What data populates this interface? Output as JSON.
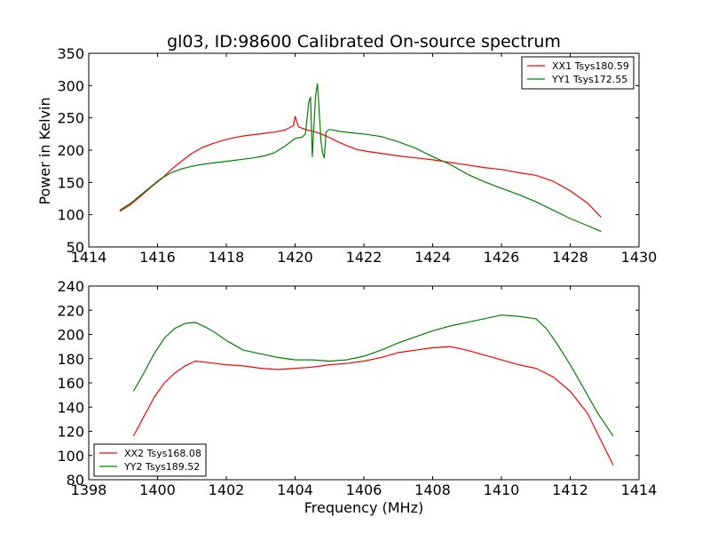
{
  "chart_data": [
    {
      "type": "line",
      "title": "gl03, ID:98600 Calibrated On-source spectrum",
      "xlabel": "",
      "ylabel": "Power in Kelvin",
      "xlim": [
        1414,
        1430
      ],
      "ylim": [
        50,
        350
      ],
      "xticks": [
        "1414",
        "1416",
        "1418",
        "1420",
        "1422",
        "1424",
        "1426",
        "1428",
        "1430"
      ],
      "yticks": [
        "50",
        "100",
        "150",
        "200",
        "250",
        "300",
        "350"
      ],
      "legend_position": "top-right",
      "series": [
        {
          "name": "XX1 Tsys180.59",
          "color": "#ff0000",
          "points": [
            [
              1414.9,
              105
            ],
            [
              1415.2,
              115
            ],
            [
              1415.5,
              128
            ],
            [
              1415.8,
              142
            ],
            [
              1416.1,
              155
            ],
            [
              1416.4,
              170
            ],
            [
              1416.7,
              183
            ],
            [
              1417.0,
              195
            ],
            [
              1417.3,
              204
            ],
            [
              1417.6,
              210
            ],
            [
              1417.9,
              215
            ],
            [
              1418.2,
              219
            ],
            [
              1418.5,
              222
            ],
            [
              1418.8,
              224
            ],
            [
              1419.1,
              226
            ],
            [
              1419.4,
              228
            ],
            [
              1419.7,
              231
            ],
            [
              1419.95,
              238
            ],
            [
              1420.0,
              252
            ],
            [
              1420.1,
              236
            ],
            [
              1420.3,
              232
            ],
            [
              1420.6,
              228
            ],
            [
              1420.9,
              222
            ],
            [
              1421.2,
              214
            ],
            [
              1421.5,
              207
            ],
            [
              1421.8,
              201
            ],
            [
              1422.1,
              198
            ],
            [
              1422.5,
              195
            ],
            [
              1423.0,
              191
            ],
            [
              1423.5,
              188
            ],
            [
              1424.0,
              185
            ],
            [
              1424.5,
              181
            ],
            [
              1425.0,
              177
            ],
            [
              1425.5,
              173
            ],
            [
              1426.0,
              170
            ],
            [
              1426.5,
              165
            ],
            [
              1427.0,
              161
            ],
            [
              1427.5,
              152
            ],
            [
              1428.0,
              137
            ],
            [
              1428.5,
              118
            ],
            [
              1428.9,
              96
            ]
          ]
        },
        {
          "name": "YY1 Tsys172.55",
          "color": "#008000",
          "points": [
            [
              1414.9,
              107
            ],
            [
              1415.2,
              117
            ],
            [
              1415.5,
              130
            ],
            [
              1415.8,
              143
            ],
            [
              1416.1,
              156
            ],
            [
              1416.4,
              165
            ],
            [
              1416.7,
              171
            ],
            [
              1417.0,
              175
            ],
            [
              1417.3,
              178
            ],
            [
              1417.6,
              180
            ],
            [
              1417.9,
              182
            ],
            [
              1418.2,
              184
            ],
            [
              1418.5,
              186
            ],
            [
              1418.8,
              188
            ],
            [
              1419.1,
              191
            ],
            [
              1419.4,
              196
            ],
            [
              1419.7,
              206
            ],
            [
              1420.0,
              218
            ],
            [
              1420.2,
              220
            ],
            [
              1420.3,
              225
            ],
            [
              1420.4,
              275
            ],
            [
              1420.45,
              282
            ],
            [
              1420.5,
              190
            ],
            [
              1420.55,
              240
            ],
            [
              1420.6,
              286
            ],
            [
              1420.65,
              303
            ],
            [
              1420.7,
              262
            ],
            [
              1420.75,
              215
            ],
            [
              1420.8,
              195
            ],
            [
              1420.85,
              188
            ],
            [
              1420.9,
              228
            ],
            [
              1421.0,
              232
            ],
            [
              1421.3,
              229
            ],
            [
              1421.6,
              227
            ],
            [
              1422.0,
              225
            ],
            [
              1422.5,
              221
            ],
            [
              1423.0,
              213
            ],
            [
              1423.5,
              203
            ],
            [
              1424.0,
              190
            ],
            [
              1424.5,
              178
            ],
            [
              1425.0,
              163
            ],
            [
              1425.5,
              151
            ],
            [
              1426.0,
              141
            ],
            [
              1426.5,
              131
            ],
            [
              1427.0,
              120
            ],
            [
              1427.5,
              107
            ],
            [
              1428.0,
              94
            ],
            [
              1428.5,
              83
            ],
            [
              1428.9,
              74
            ]
          ]
        }
      ]
    },
    {
      "type": "line",
      "title": "",
      "xlabel": "Frequency (MHz)",
      "ylabel": "",
      "xlim": [
        1398,
        1414
      ],
      "ylim": [
        80,
        240
      ],
      "xticks": [
        "1398",
        "1400",
        "1402",
        "1404",
        "1406",
        "1408",
        "1410",
        "1412",
        "1414"
      ],
      "yticks": [
        "80",
        "100",
        "120",
        "140",
        "160",
        "180",
        "200",
        "220",
        "240"
      ],
      "legend_position": "bottom-left",
      "series": [
        {
          "name": "XX2 Tsys168.08",
          "color": "#ff0000",
          "points": [
            [
              1399.3,
              116
            ],
            [
              1399.6,
              132
            ],
            [
              1399.9,
              148
            ],
            [
              1400.2,
              160
            ],
            [
              1400.5,
              168
            ],
            [
              1400.8,
              174
            ],
            [
              1401.1,
              178
            ],
            [
              1401.4,
              177
            ],
            [
              1401.7,
              176
            ],
            [
              1402.0,
              175
            ],
            [
              1402.5,
              174
            ],
            [
              1403.0,
              172
            ],
            [
              1403.5,
              171
            ],
            [
              1404.0,
              172
            ],
            [
              1404.5,
              173
            ],
            [
              1405.0,
              175
            ],
            [
              1405.5,
              176
            ],
            [
              1406.0,
              178
            ],
            [
              1406.5,
              181
            ],
            [
              1407.0,
              185
            ],
            [
              1407.5,
              187
            ],
            [
              1408.0,
              189
            ],
            [
              1408.5,
              190
            ],
            [
              1409.0,
              187
            ],
            [
              1409.5,
              183
            ],
            [
              1410.0,
              179
            ],
            [
              1410.5,
              175
            ],
            [
              1411.0,
              172
            ],
            [
              1411.5,
              165
            ],
            [
              1412.0,
              153
            ],
            [
              1412.5,
              135
            ],
            [
              1412.9,
              112
            ],
            [
              1413.25,
              92
            ]
          ]
        },
        {
          "name": "YY2 Tsys189.52",
          "color": "#008000",
          "points": [
            [
              1399.3,
              153
            ],
            [
              1399.6,
              168
            ],
            [
              1399.9,
              184
            ],
            [
              1400.2,
              197
            ],
            [
              1400.5,
              205
            ],
            [
              1400.8,
              209
            ],
            [
              1401.1,
              210
            ],
            [
              1401.4,
              206
            ],
            [
              1401.7,
              201
            ],
            [
              1402.0,
              195
            ],
            [
              1402.5,
              187
            ],
            [
              1403.0,
              184
            ],
            [
              1403.5,
              181
            ],
            [
              1404.0,
              179
            ],
            [
              1404.5,
              179
            ],
            [
              1405.0,
              178
            ],
            [
              1405.5,
              179
            ],
            [
              1406.0,
              182
            ],
            [
              1406.5,
              187
            ],
            [
              1407.0,
              193
            ],
            [
              1407.5,
              198
            ],
            [
              1408.0,
              203
            ],
            [
              1408.5,
              207
            ],
            [
              1409.0,
              210
            ],
            [
              1409.5,
              213
            ],
            [
              1410.0,
              216
            ],
            [
              1410.5,
              215
            ],
            [
              1411.0,
              213
            ],
            [
              1411.3,
              205
            ],
            [
              1411.6,
              193
            ],
            [
              1412.0,
              175
            ],
            [
              1412.4,
              155
            ],
            [
              1412.8,
              135
            ],
            [
              1413.25,
              116
            ]
          ]
        }
      ]
    }
  ]
}
